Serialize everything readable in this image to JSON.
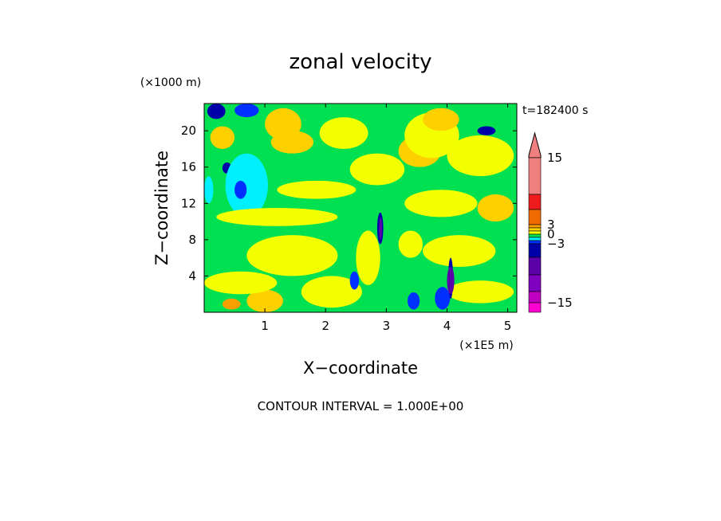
{
  "chart_data": {
    "type": "heatmap",
    "title": "zonal velocity",
    "xlabel": "X−coordinate",
    "ylabel": "Z−coordinate",
    "x_unit_label": "(×1E5 m)",
    "y_unit_label": "(×1000 m)",
    "time_label": "t=182400 s",
    "footer": "CONTOUR INTERVAL = 1.000E+00",
    "xlim": [
      0,
      5.15
    ],
    "ylim": [
      0,
      23
    ],
    "x_ticks": [
      1,
      2,
      3,
      4,
      5
    ],
    "y_ticks": [
      4,
      8,
      12,
      16,
      20
    ],
    "colorbar": {
      "ticks": [
        {
          "value": 15,
          "label": "15"
        },
        {
          "value": 3,
          "label": "3"
        },
        {
          "value": 0,
          "label": "0"
        },
        {
          "value": -3,
          "label": "−3"
        },
        {
          "value": -15,
          "label": "−15"
        }
      ],
      "bands": [
        {
          "from": 15,
          "to": 22,
          "color": "#f08080"
        },
        {
          "from": 9,
          "to": 15,
          "color": "#f08080"
        },
        {
          "from": 6,
          "to": 9,
          "color": "#ee1c1c"
        },
        {
          "from": 3,
          "to": 6,
          "color": "#f06a00"
        },
        {
          "from": 2,
          "to": 3,
          "color": "#f7a000"
        },
        {
          "from": 1,
          "to": 2,
          "color": "#ffd000"
        },
        {
          "from": 0,
          "to": 1,
          "color": "#f4ff00"
        },
        {
          "from": -1,
          "to": 0,
          "color": "#00e050"
        },
        {
          "from": -2,
          "to": -1,
          "color": "#00f0ff"
        },
        {
          "from": -3,
          "to": -2,
          "color": "#0030ff"
        },
        {
          "from": -6,
          "to": -3,
          "color": "#0000a8"
        },
        {
          "from": -9,
          "to": -6,
          "color": "#5a00a8"
        },
        {
          "from": -12,
          "to": -9,
          "color": "#8000c0"
        },
        {
          "from": -15,
          "to": -12,
          "color": "#c000c0"
        },
        {
          "from": -18,
          "to": -15,
          "color": "#ff00d0"
        }
      ],
      "extend": "max"
    },
    "background_value": -0.5,
    "regions": [
      {
        "x": [
          0.05,
          0.35
        ],
        "z": [
          21.3,
          23
        ],
        "v": -4
      },
      {
        "x": [
          0.5,
          0.9
        ],
        "z": [
          21.5,
          23
        ],
        "v": -3
      },
      {
        "x": [
          0.3,
          0.45
        ],
        "z": [
          15.3,
          16.5
        ],
        "v": -4
      },
      {
        "x": [
          0.35,
          1.05
        ],
        "z": [
          10.5,
          17.5
        ],
        "v": -1.5
      },
      {
        "x": [
          0.0,
          0.15
        ],
        "z": [
          12,
          15
        ],
        "v": -1.5
      },
      {
        "x": [
          0.7,
          1.3
        ],
        "z": [
          0,
          2.5
        ],
        "v": 1
      },
      {
        "x": [
          0.1,
          0.5
        ],
        "z": [
          18,
          20.5
        ],
        "v": 1.5
      },
      {
        "x": [
          0.3,
          0.6
        ],
        "z": [
          0.3,
          1.5
        ],
        "v": 2.5
      },
      {
        "x": [
          1.1,
          1.8
        ],
        "z": [
          17.5,
          20
        ],
        "v": 1.5
      },
      {
        "x": [
          1.0,
          1.6
        ],
        "z": [
          19,
          22.5
        ],
        "v": 1
      },
      {
        "x": [
          1.9,
          2.7
        ],
        "z": [
          18,
          21.5
        ],
        "v": 0.5
      },
      {
        "x": [
          2.4,
          3.3
        ],
        "z": [
          14,
          17.5
        ],
        "v": 0.5
      },
      {
        "x": [
          3.2,
          3.9
        ],
        "z": [
          16,
          19.5
        ],
        "v": 1
      },
      {
        "x": [
          3.3,
          4.2
        ],
        "z": [
          17,
          22
        ],
        "v": 0.5
      },
      {
        "x": [
          3.6,
          4.2
        ],
        "z": [
          20,
          22.5
        ],
        "v": 1.5
      },
      {
        "x": [
          4.0,
          5.1
        ],
        "z": [
          15,
          19.5
        ],
        "v": 0.5
      },
      {
        "x": [
          4.5,
          5.1
        ],
        "z": [
          10,
          13
        ],
        "v": 1.5
      },
      {
        "x": [
          3.3,
          4.5
        ],
        "z": [
          10.5,
          13.5
        ],
        "v": 0.5
      },
      {
        "x": [
          1.2,
          2.5
        ],
        "z": [
          12.5,
          14.5
        ],
        "v": 0.5
      },
      {
        "x": [
          0.2,
          2.2
        ],
        "z": [
          9.5,
          11.5
        ],
        "v": 0.5
      },
      {
        "x": [
          0.7,
          2.2
        ],
        "z": [
          4,
          8.5
        ],
        "v": 0.5
      },
      {
        "x": [
          0.0,
          1.2
        ],
        "z": [
          2,
          4.5
        ],
        "v": 0.5
      },
      {
        "x": [
          1.6,
          2.6
        ],
        "z": [
          0.5,
          4
        ],
        "v": 0.5
      },
      {
        "x": [
          3.6,
          4.8
        ],
        "z": [
          5,
          8.5
        ],
        "v": 0.5
      },
      {
        "x": [
          4.0,
          5.1
        ],
        "z": [
          1,
          3.5
        ],
        "v": 0.5
      },
      {
        "x": [
          2.5,
          2.9
        ],
        "z": [
          3,
          9
        ],
        "v": 0.5
      },
      {
        "x": [
          3.2,
          3.6
        ],
        "z": [
          6,
          9
        ],
        "v": 0.5
      },
      {
        "x": [
          0.5,
          0.7
        ],
        "z": [
          12.5,
          14.5
        ],
        "v": -2.5
      },
      {
        "x": [
          4.5,
          4.8
        ],
        "z": [
          19.5,
          20.5
        ],
        "v": -4
      },
      {
        "x": [
          3.35,
          3.55
        ],
        "z": [
          0.3,
          2.2
        ],
        "v": -2.5
      },
      {
        "x": [
          3.8,
          4.05
        ],
        "z": [
          0.3,
          2.8
        ],
        "v": -2.5
      },
      {
        "x": [
          2.4,
          2.55
        ],
        "z": [
          2.5,
          4.5
        ],
        "v": -2.5
      },
      {
        "x": [
          2.85,
          2.95
        ],
        "z": [
          7.5,
          11
        ],
        "v": -4
      },
      {
        "x": [
          2.88,
          2.93
        ],
        "z": [
          8,
          10.5
        ],
        "v": -8
      },
      {
        "x": [
          4.02,
          4.1
        ],
        "z": [
          1.5,
          6
        ],
        "v": -4
      },
      {
        "x": [
          4.0,
          4.12
        ],
        "z": [
          2,
          5
        ],
        "v": -7
      }
    ]
  }
}
